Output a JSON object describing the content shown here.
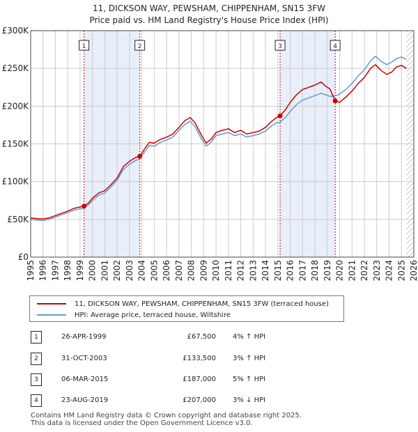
{
  "chart_data": {
    "type": "line",
    "title": "11, DICKSON WAY, PEWSHAM, CHIPPENHAM, SN15 3FW",
    "subtitle": "Price paid vs. HM Land Registry's House Price Index (HPI)",
    "xlabel": "",
    "ylabel": "",
    "xlim": [
      1995,
      2026
    ],
    "ylim": [
      0,
      300000
    ],
    "x_ticks": [
      "1995",
      "1996",
      "1997",
      "1998",
      "1999",
      "2000",
      "2001",
      "2002",
      "2003",
      "2004",
      "2005",
      "2006",
      "2007",
      "2008",
      "2009",
      "2010",
      "2011",
      "2012",
      "2013",
      "2014",
      "2015",
      "2016",
      "2017",
      "2018",
      "2019",
      "2020",
      "2021",
      "2022",
      "2023",
      "2024",
      "2025",
      "2026"
    ],
    "y_ticks": [
      {
        "value": 0,
        "label": "£0"
      },
      {
        "value": 50000,
        "label": "£50K"
      },
      {
        "value": 100000,
        "label": "£100K"
      },
      {
        "value": 150000,
        "label": "£150K"
      },
      {
        "value": 200000,
        "label": "£200K"
      },
      {
        "value": 250000,
        "label": "£250K"
      },
      {
        "value": 300000,
        "label": "£300K"
      }
    ],
    "grid": true,
    "data_end": 2025.4,
    "series": [
      {
        "name": "11, DICKSON WAY, PEWSHAM, CHIPPENHAM, SN15 3FW (terraced house)",
        "color": "#cc0000",
        "points": [
          [
            1995,
            52000
          ],
          [
            1995.5,
            51000
          ],
          [
            1996,
            50500
          ],
          [
            1996.5,
            52000
          ],
          [
            1997,
            55000
          ],
          [
            1997.5,
            58000
          ],
          [
            1998,
            61000
          ],
          [
            1998.5,
            64500
          ],
          [
            1999,
            66500
          ],
          [
            1999.32,
            67500
          ],
          [
            1999.7,
            72000
          ],
          [
            2000,
            78000
          ],
          [
            2000.5,
            85000
          ],
          [
            2001,
            88000
          ],
          [
            2001.5,
            96000
          ],
          [
            2002,
            105000
          ],
          [
            2002.5,
            120000
          ],
          [
            2003,
            127000
          ],
          [
            2003.5,
            132000
          ],
          [
            2003.83,
            133500
          ],
          [
            2004.2,
            143000
          ],
          [
            2004.6,
            152000
          ],
          [
            2005,
            151000
          ],
          [
            2005.5,
            156000
          ],
          [
            2006,
            159000
          ],
          [
            2006.5,
            163000
          ],
          [
            2007,
            172000
          ],
          [
            2007.5,
            181000
          ],
          [
            2007.9,
            185000
          ],
          [
            2008.3,
            178000
          ],
          [
            2008.8,
            162000
          ],
          [
            2009.2,
            151000
          ],
          [
            2009.6,
            156000
          ],
          [
            2010,
            165000
          ],
          [
            2010.5,
            168000
          ],
          [
            2011,
            170000
          ],
          [
            2011.5,
            165000
          ],
          [
            2012,
            168000
          ],
          [
            2012.5,
            163000
          ],
          [
            2013,
            165000
          ],
          [
            2013.5,
            167000
          ],
          [
            2014,
            172000
          ],
          [
            2014.5,
            180000
          ],
          [
            2014.9,
            185000
          ],
          [
            2015.18,
            187000
          ],
          [
            2015.6,
            195000
          ],
          [
            2016,
            205000
          ],
          [
            2016.5,
            215000
          ],
          [
            2017,
            222000
          ],
          [
            2017.5,
            225000
          ],
          [
            2018,
            228000
          ],
          [
            2018.5,
            232000
          ],
          [
            2018.9,
            226000
          ],
          [
            2019.2,
            223000
          ],
          [
            2019.64,
            207000
          ],
          [
            2020,
            205000
          ],
          [
            2020.5,
            212000
          ],
          [
            2021,
            220000
          ],
          [
            2021.5,
            230000
          ],
          [
            2022,
            238000
          ],
          [
            2022.5,
            250000
          ],
          [
            2022.9,
            255000
          ],
          [
            2023.3,
            248000
          ],
          [
            2023.8,
            242000
          ],
          [
            2024.2,
            245000
          ],
          [
            2024.6,
            252000
          ],
          [
            2025,
            254000
          ],
          [
            2025.4,
            250000
          ]
        ]
      },
      {
        "name": "HPI: Average price, terraced house, Wiltshire",
        "color": "#6699cc",
        "points": [
          [
            1995,
            50000
          ],
          [
            1995.5,
            49000
          ],
          [
            1996,
            48500
          ],
          [
            1996.5,
            50000
          ],
          [
            1997,
            53000
          ],
          [
            1997.5,
            56000
          ],
          [
            1998,
            59000
          ],
          [
            1998.5,
            62000
          ],
          [
            1999,
            64000
          ],
          [
            1999.32,
            65000
          ],
          [
            1999.7,
            69500
          ],
          [
            2000,
            75000
          ],
          [
            2000.5,
            82000
          ],
          [
            2001,
            85000
          ],
          [
            2001.5,
            93000
          ],
          [
            2002,
            102000
          ],
          [
            2002.5,
            116000
          ],
          [
            2003,
            123000
          ],
          [
            2003.5,
            128000
          ],
          [
            2003.83,
            130000
          ],
          [
            2004.2,
            139000
          ],
          [
            2004.6,
            148000
          ],
          [
            2005,
            147000
          ],
          [
            2005.5,
            152000
          ],
          [
            2006,
            155000
          ],
          [
            2006.5,
            159000
          ],
          [
            2007,
            168000
          ],
          [
            2007.5,
            176000
          ],
          [
            2007.9,
            180000
          ],
          [
            2008.3,
            173000
          ],
          [
            2008.8,
            157000
          ],
          [
            2009.2,
            147000
          ],
          [
            2009.6,
            152000
          ],
          [
            2010,
            161000
          ],
          [
            2010.5,
            163000
          ],
          [
            2011,
            165000
          ],
          [
            2011.5,
            161000
          ],
          [
            2012,
            163000
          ],
          [
            2012.5,
            159000
          ],
          [
            2013,
            161000
          ],
          [
            2013.5,
            163000
          ],
          [
            2014,
            167000
          ],
          [
            2014.5,
            174000
          ],
          [
            2014.9,
            178000
          ],
          [
            2015.18,
            178500
          ],
          [
            2015.6,
            185000
          ],
          [
            2016,
            193000
          ],
          [
            2016.5,
            202000
          ],
          [
            2017,
            208000
          ],
          [
            2017.5,
            211000
          ],
          [
            2018,
            214000
          ],
          [
            2018.5,
            217000
          ],
          [
            2018.9,
            215000
          ],
          [
            2019.2,
            213000
          ],
          [
            2019.64,
            213500
          ],
          [
            2020,
            216000
          ],
          [
            2020.5,
            222000
          ],
          [
            2021,
            230000
          ],
          [
            2021.5,
            240000
          ],
          [
            2022,
            248000
          ],
          [
            2022.5,
            260000
          ],
          [
            2022.9,
            266000
          ],
          [
            2023.3,
            260000
          ],
          [
            2023.8,
            255000
          ],
          [
            2024.2,
            258000
          ],
          [
            2024.6,
            263000
          ],
          [
            2025,
            265000
          ],
          [
            2025.4,
            262000
          ]
        ]
      }
    ],
    "sales": [
      {
        "num": "1",
        "x": 1999.32,
        "value": 67500
      },
      {
        "num": "2",
        "x": 2003.83,
        "value": 133500
      },
      {
        "num": "3",
        "x": 2015.18,
        "value": 187000
      },
      {
        "num": "4",
        "x": 2019.64,
        "value": 207000
      }
    ],
    "colors": {
      "band": "#e8eefa",
      "marker_line": "#cc0000",
      "grid": "#cccccc",
      "hatch": "#999999"
    }
  },
  "legend": {
    "property": "11, DICKSON WAY, PEWSHAM, CHIPPENHAM, SN15 3FW (terraced house)",
    "hpi": "HPI: Average price, terraced house, Wiltshire"
  },
  "sales_table": [
    {
      "num": "1",
      "date": "26-APR-1999",
      "price": "£67,500",
      "hpi": "4% ↑ HPI"
    },
    {
      "num": "2",
      "date": "31-OCT-2003",
      "price": "£133,500",
      "hpi": "3% ↑ HPI"
    },
    {
      "num": "3",
      "date": "06-MAR-2015",
      "price": "£187,000",
      "hpi": "5% ↑ HPI"
    },
    {
      "num": "4",
      "date": "23-AUG-2019",
      "price": "£207,000",
      "hpi": "3% ↓ HPI"
    }
  ],
  "footer": {
    "line1": "Contains HM Land Registry data © Crown copyright and database right 2025.",
    "line2": "This data is licensed under the Open Government Licence v3.0."
  }
}
